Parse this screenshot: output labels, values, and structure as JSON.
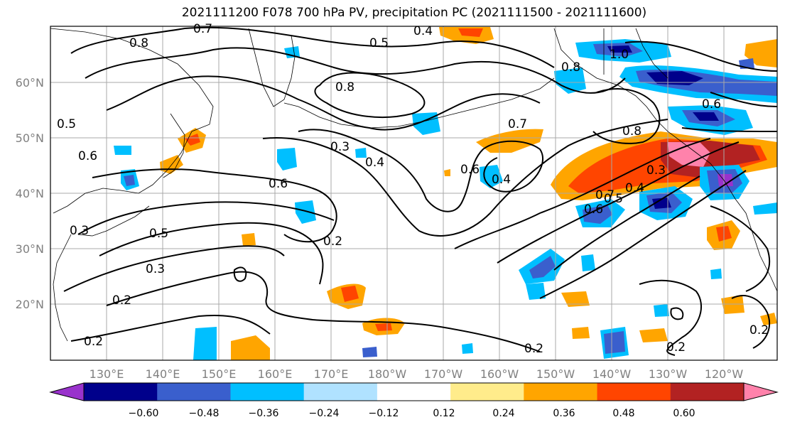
{
  "title": "2021111200 F078 700 hPa PV, precipitation PC (2021111500 - 2021111600)",
  "lat_labels": [
    "60°N",
    "50°N",
    "40°N",
    "30°N",
    "20°N"
  ],
  "lon_labels": [
    "130°E",
    "140°E",
    "150°E",
    "160°E",
    "170°E",
    "180°W",
    "170°W",
    "160°W",
    "150°W",
    "140°W",
    "130°W",
    "120°W"
  ],
  "contour_labels": [
    "0.8",
    "0.7",
    "0.4",
    "0.5",
    "0.8",
    "0.5",
    "0.6",
    "0.3",
    "0.4",
    "0.6",
    "0.4",
    "0.6",
    "0.5",
    "0.3",
    "0.2",
    "0.2",
    "0.2",
    "0.2",
    "0.6",
    "0.7",
    "0.8",
    "0.3",
    "0.4",
    "0.5",
    "0.6",
    "0.7",
    "0.8",
    "1.0",
    "0.2",
    "0.2",
    "0.3"
  ],
  "colorbar": {
    "colors": [
      "#9932cc",
      "#00008b",
      "#3a5fcd",
      "#00bfff",
      "#b0e2ff",
      "#ffffff",
      "#ffec8b",
      "#ffa500",
      "#ff4500",
      "#b22222",
      "#ff82ab"
    ],
    "tick_labels": [
      "−0.60",
      "−0.48",
      "−0.36",
      "−0.24",
      "−0.12",
      "0.12",
      "0.24",
      "0.36",
      "0.48",
      "0.60"
    ]
  }
}
